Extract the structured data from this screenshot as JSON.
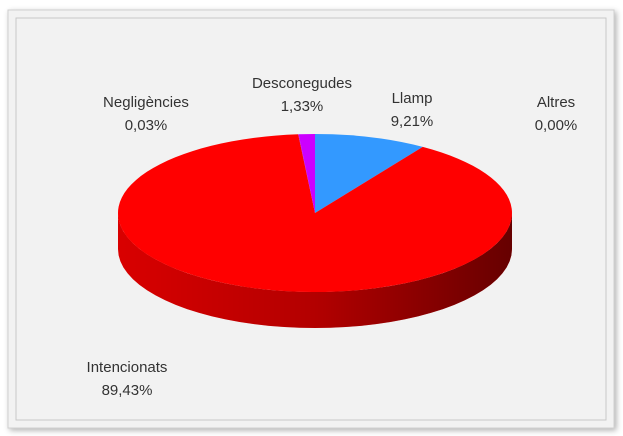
{
  "chart_data": {
    "type": "pie",
    "categories": [
      "Llamp",
      "Intencionats",
      "Negligències",
      "Desconegudes",
      "Altres"
    ],
    "values": [
      9.21,
      89.43,
      0.03,
      1.33,
      0.0
    ],
    "value_labels": [
      "9,21%",
      "89,43%",
      "0,03%",
      "1,33%",
      "0,00%"
    ],
    "colors": [
      "#3399ff",
      "#ff0000",
      "#9900cc",
      "#cc00ff",
      "#66cc33"
    ]
  }
}
